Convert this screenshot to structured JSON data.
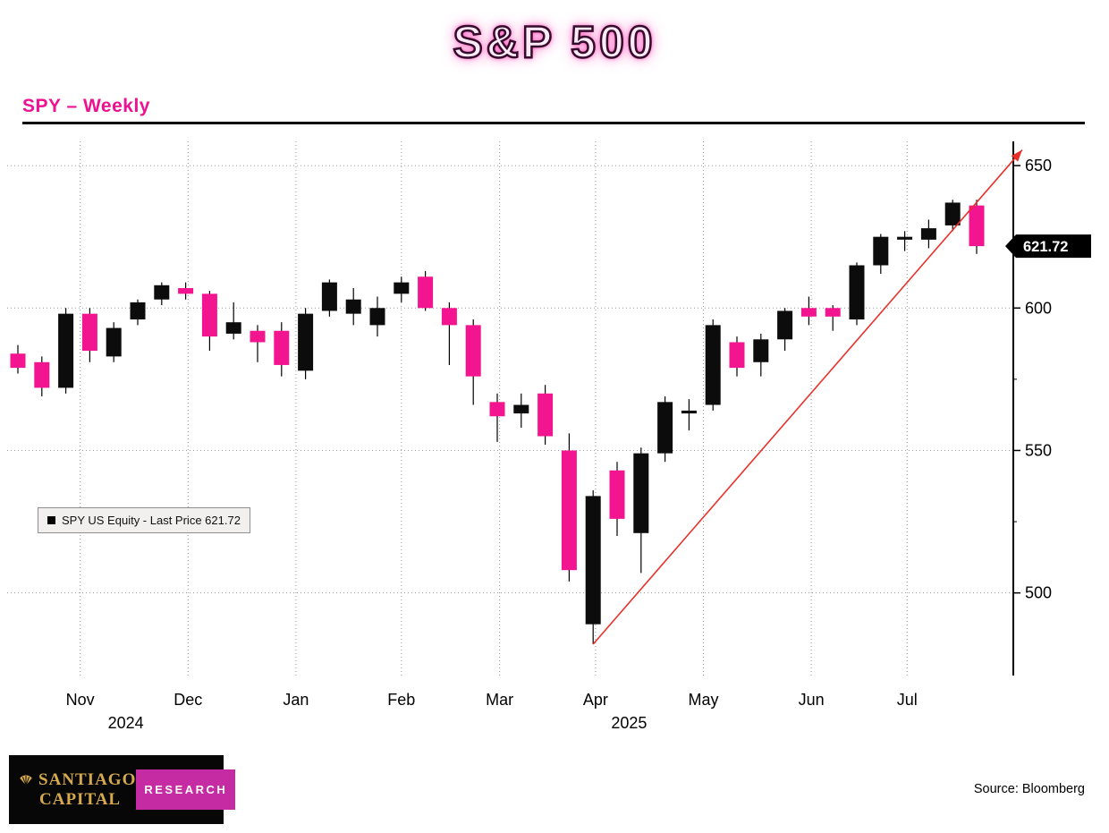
{
  "title": "S&P 500",
  "subtitle": "SPY – Weekly",
  "source_text": "Source: Bloomberg",
  "legend": {
    "swatch_color": "#000000",
    "label": "SPY US Equity - Last Price 621.72"
  },
  "logo": {
    "name_line1": "Santiago",
    "name_line2": "Capital",
    "badge": "RESEARCH"
  },
  "colors": {
    "up": "#0c0c0c",
    "down": "#f3158f",
    "trend": "#e8302a",
    "accent": "#ee1190",
    "grid": "#9a9a9a",
    "tag_bg": "#000000",
    "tag_text": "#ffffff"
  },
  "chart_data": {
    "type": "candlestick",
    "title": "S&P 500",
    "symbol": "SPY US Equity",
    "interval": "Weekly",
    "last_price": 621.72,
    "ylim": [
      471,
      658.5
    ],
    "yticks": [
      500,
      550,
      600,
      650
    ],
    "yticks_minor": [
      525,
      575,
      625
    ],
    "xticks": [
      {
        "label": "Nov",
        "index": 2.6
      },
      {
        "label": "Dec",
        "index": 7.1
      },
      {
        "label": "Jan",
        "index": 11.6
      },
      {
        "label": "Feb",
        "index": 16.0
      },
      {
        "label": "Mar",
        "index": 20.1
      },
      {
        "label": "Apr",
        "index": 24.1
      },
      {
        "label": "May",
        "index": 28.6
      },
      {
        "label": "Jun",
        "index": 33.1
      },
      {
        "label": "Jul",
        "index": 37.1
      }
    ],
    "year_labels": [
      {
        "label": "2024",
        "index": 4.5
      },
      {
        "label": "2025",
        "index": 25.5
      }
    ],
    "candles": {
      "columns": [
        "week_ending",
        "open",
        "high",
        "low",
        "close"
      ],
      "rows": [
        [
          "2024-10-25",
          584,
          587,
          577,
          579
        ],
        [
          "2024-11-01",
          581,
          583,
          569,
          572
        ],
        [
          "2024-11-08",
          572,
          600,
          570,
          598
        ],
        [
          "2024-11-15",
          598,
          600,
          581,
          585
        ],
        [
          "2024-11-22",
          583,
          595,
          581,
          593
        ],
        [
          "2024-11-29",
          596,
          603,
          594,
          602
        ],
        [
          "2024-12-06",
          603,
          609,
          601,
          608
        ],
        [
          "2024-12-13",
          607,
          609,
          603,
          605
        ],
        [
          "2024-12-20",
          605,
          606,
          585,
          590
        ],
        [
          "2024-12-27",
          591,
          602,
          589,
          595
        ],
        [
          "2025-01-03",
          592,
          594,
          581,
          588
        ],
        [
          "2025-01-10",
          592,
          595,
          576,
          580
        ],
        [
          "2025-01-17",
          578,
          600,
          575,
          598
        ],
        [
          "2025-01-24",
          599,
          610,
          597,
          609
        ],
        [
          "2025-01-31",
          598,
          607,
          594,
          603
        ],
        [
          "2025-02-07",
          594,
          604,
          590,
          600
        ],
        [
          "2025-02-14",
          605,
          611,
          602,
          609
        ],
        [
          "2025-02-21",
          611,
          613,
          599,
          600
        ],
        [
          "2025-02-28",
          600,
          602,
          580,
          594
        ],
        [
          "2025-03-07",
          594,
          596,
          566,
          576
        ],
        [
          "2025-03-14",
          567,
          570,
          553,
          562
        ],
        [
          "2025-03-21",
          563,
          570,
          558,
          566
        ],
        [
          "2025-03-28",
          570,
          573,
          552,
          555
        ],
        [
          "2025-04-04",
          550,
          556,
          504,
          508
        ],
        [
          "2025-04-11",
          489,
          536,
          482,
          534
        ],
        [
          "2025-04-17",
          543,
          546,
          520,
          526
        ],
        [
          "2025-04-25",
          521,
          551,
          507,
          549
        ],
        [
          "2025-05-02",
          549,
          569,
          546,
          567
        ],
        [
          "2025-05-09",
          563,
          568,
          557,
          564
        ],
        [
          "2025-05-16",
          566,
          596,
          564,
          594
        ],
        [
          "2025-05-23",
          588,
          590,
          576,
          579
        ],
        [
          "2025-05-30",
          581,
          591,
          576,
          589
        ],
        [
          "2025-06-06",
          589,
          600,
          585,
          599
        ],
        [
          "2025-06-13",
          600,
          604,
          594,
          597
        ],
        [
          "2025-06-20",
          600,
          601,
          592,
          597
        ],
        [
          "2025-06-27",
          596,
          616,
          594,
          615
        ],
        [
          "2025-07-03",
          615,
          626,
          612,
          625
        ],
        [
          "2025-07-11",
          624,
          627,
          620,
          625
        ],
        [
          "2025-07-18",
          624,
          631,
          621,
          628
        ],
        [
          "2025-07-25",
          629,
          638,
          627,
          637
        ],
        [
          "2025-08-01",
          636,
          638,
          619,
          621.72
        ]
      ]
    },
    "trendline": {
      "from_index": 24,
      "from_price": 482,
      "to_index": 41.9,
      "to_price": 655.5
    }
  }
}
